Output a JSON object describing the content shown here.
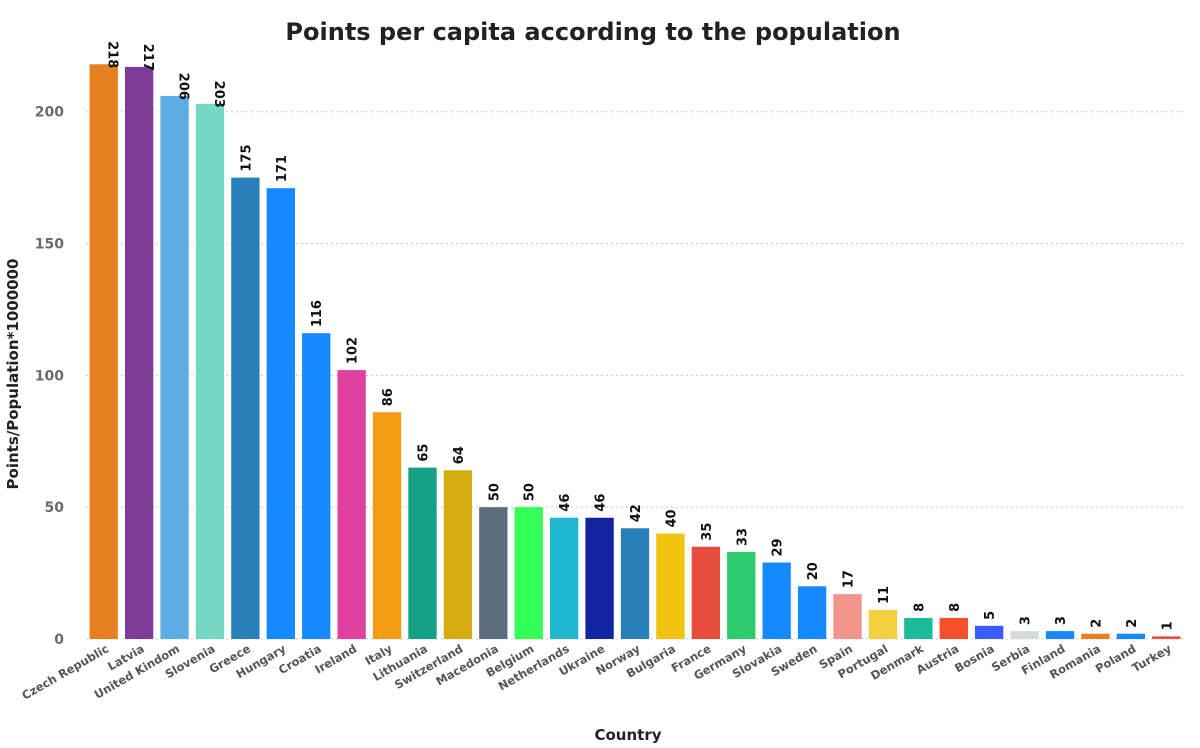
{
  "chart_data": {
    "type": "bar",
    "title": "Points per capita according to the population",
    "xlabel": "Country",
    "ylabel": "Points/Population*1000000",
    "ylim": [
      0,
      220
    ],
    "yticks": [
      0,
      50,
      100,
      150,
      200
    ],
    "grid": true,
    "categories": [
      "Czech Republic",
      "Latvia",
      "United Kindom",
      "Slovenia",
      "Greece",
      "Hungary",
      "Croatia",
      "Ireland",
      "Italy",
      "Lithuania",
      "Switzerland",
      "Macedonia",
      "Belgium",
      "Netherlands",
      "Ukraine",
      "Norway",
      "Bulgaria",
      "France",
      "Germany",
      "Slovakia",
      "Sweden",
      "Spain",
      "Portugal",
      "Denmark",
      "Austria",
      "Bosnia",
      "Serbia",
      "Finland",
      "Romania",
      "Poland",
      "Turkey"
    ],
    "values": [
      218,
      217,
      206,
      203,
      175,
      171,
      116,
      102,
      86,
      65,
      64,
      50,
      50,
      46,
      46,
      42,
      40,
      35,
      33,
      29,
      20,
      17,
      11,
      8,
      8,
      5,
      3,
      3,
      2,
      2,
      1
    ],
    "colors": [
      "#e67e22",
      "#7d3c98",
      "#5dade2",
      "#76d7c4",
      "#2980b9",
      "#1589ff",
      "#1589ff",
      "#e040a0",
      "#f39c12",
      "#16a085",
      "#d4ac0d",
      "#5d6d7e",
      "#33ff57",
      "#1fb8d0",
      "#1224a0",
      "#2980b9",
      "#f1c40f",
      "#e74c3c",
      "#2ecc71",
      "#1589ff",
      "#1589ff",
      "#f1948a",
      "#f4d03f",
      "#1abc9c",
      "#f4502a",
      "#3a5bff",
      "#d5dbdb",
      "#1589ff",
      "#e67e22",
      "#1589ff",
      "#e74c3c"
    ]
  }
}
